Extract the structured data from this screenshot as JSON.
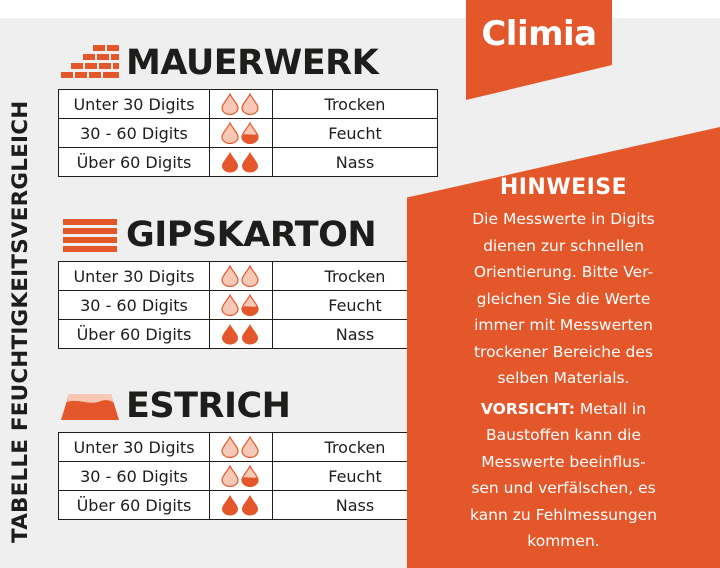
{
  "side_title": "TABELLE FEUCHTIGKEITSVERGLEICH",
  "brand": "Climia",
  "colors": {
    "accent": "#e4572a",
    "drop_light": "#f7c9b5",
    "text": "#1d1d1b",
    "background": "#efefef"
  },
  "sections": [
    {
      "name": "MAUERWERK",
      "icon": "brick-wall-icon",
      "rows": [
        {
          "range": "Unter 30 Digits",
          "drops": "two-empty-drops",
          "state": "Trocken"
        },
        {
          "range": "30 - 60 Digits",
          "drops": "empty-and-half-drop",
          "state": "Feucht"
        },
        {
          "range": "Über 60 Digits",
          "drops": "two-full-drops",
          "state": "Nass"
        }
      ]
    },
    {
      "name": "GIPSKARTON",
      "icon": "plasterboard-stack-icon",
      "rows": [
        {
          "range": "Unter 30 Digits",
          "drops": "two-empty-drops",
          "state": "Trocken"
        },
        {
          "range": "30 - 60 Digits",
          "drops": "empty-and-half-drop",
          "state": "Feucht"
        },
        {
          "range": "Über 60 Digits",
          "drops": "two-full-drops",
          "state": "Nass"
        }
      ]
    },
    {
      "name": "ESTRICH",
      "icon": "screed-layer-icon",
      "rows": [
        {
          "range": "Unter 30 Digits",
          "drops": "two-empty-drops",
          "state": "Trocken"
        },
        {
          "range": "30 - 60 Digits",
          "drops": "empty-and-half-drop",
          "state": "Feucht"
        },
        {
          "range": "Über 60 Digits",
          "drops": "two-full-drops",
          "state": "Nass"
        }
      ]
    }
  ],
  "notes": {
    "title": "HINWEISE",
    "paragraph_lines": [
      "Die Messwerte in Digits",
      "dienen zur schnellen",
      "Orientierung. Bitte Ver-",
      "gleichen Sie die Werte",
      "immer mit Messwerten",
      "trockener Bereiche des",
      "selben Materials."
    ],
    "warning_label": "VORSICHT:",
    "warning_first_line_rest": " Metall in",
    "warning_lines": [
      "Baustoffen kann die",
      "Messwerte beeinflus-",
      "sen und verfälschen, es",
      "kann zu Fehlmessungen",
      "kommen."
    ]
  }
}
